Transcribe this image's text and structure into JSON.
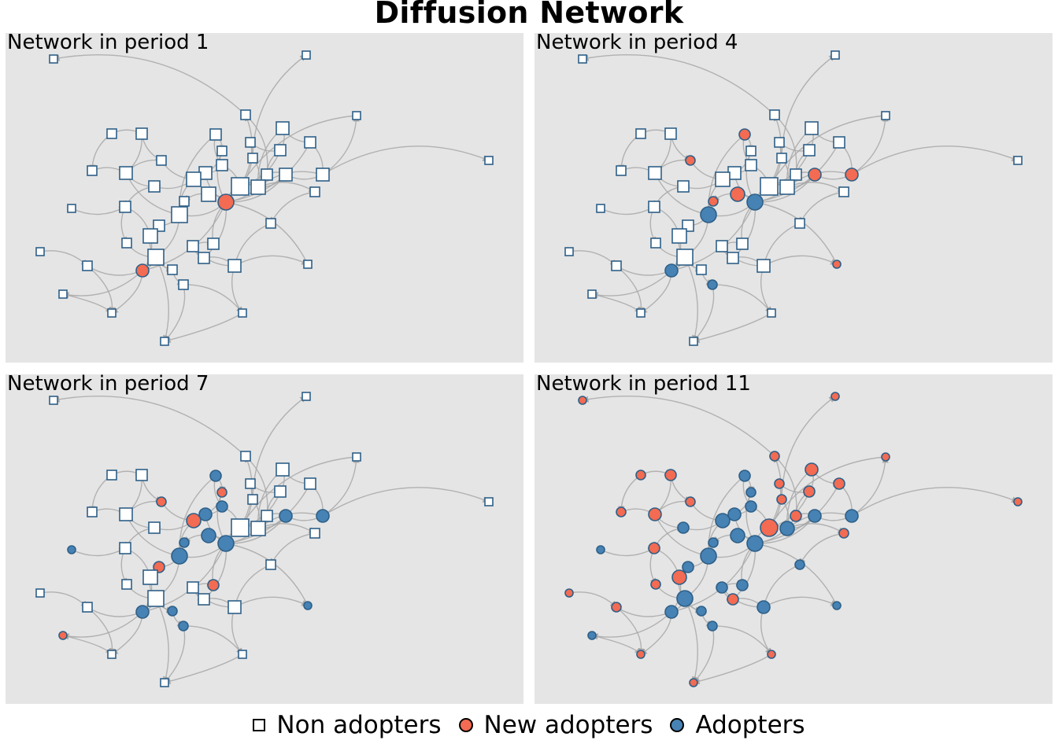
{
  "title": "Diffusion Network",
  "colors": {
    "non_adopter_fill": "#ffffff",
    "new_adopter_fill": "#f26b52",
    "adopter_fill": "#4682b4",
    "node_border": "#2e5f87",
    "edge": "#a8a8a8",
    "panel_bg": "#e5e5e5"
  },
  "panels": [
    {
      "label": "Network in period 1"
    },
    {
      "label": "Network in period 4"
    },
    {
      "label": "Network in period 7"
    },
    {
      "label": "Network in period 11"
    }
  ],
  "legend": [
    {
      "label": "Non adopters",
      "shape": "square",
      "color": "#ffffff"
    },
    {
      "label": "New adopters",
      "shape": "circle",
      "color": "#f26b52"
    },
    {
      "label": "Adopters",
      "shape": "circle",
      "color": "#4682b4"
    }
  ],
  "status_codes": {
    "0": "non adopter",
    "1": "new adopter",
    "2": "adopter"
  },
  "node_states": [
    [
      0,
      0,
      0,
      0,
      0,
      0,
      0,
      0,
      0,
      0,
      0,
      0,
      0,
      0,
      0,
      0,
      0,
      0,
      0,
      0,
      0,
      0,
      0,
      0,
      0,
      0,
      0,
      0,
      1,
      0,
      0,
      0,
      0,
      0,
      0,
      0,
      0,
      0,
      0,
      0,
      0,
      0,
      0,
      1,
      0,
      0,
      0,
      0,
      0,
      0
    ],
    [
      0,
      0,
      0,
      0,
      0,
      0,
      0,
      1,
      0,
      0,
      0,
      0,
      0,
      0,
      1,
      0,
      0,
      0,
      0,
      0,
      0,
      1,
      1,
      0,
      0,
      0,
      0,
      1,
      2,
      1,
      2,
      0,
      0,
      0,
      0,
      0,
      0,
      0,
      0,
      0,
      0,
      0,
      0,
      2,
      0,
      0,
      1,
      2,
      0,
      0
    ],
    [
      0,
      0,
      0,
      0,
      0,
      0,
      0,
      2,
      0,
      0,
      0,
      1,
      0,
      0,
      1,
      0,
      0,
      2,
      2,
      1,
      0,
      2,
      2,
      0,
      0,
      0,
      0,
      2,
      2,
      2,
      2,
      2,
      0,
      0,
      1,
      0,
      0,
      0,
      0,
      1,
      0,
      0,
      0,
      2,
      2,
      0,
      2,
      2,
      1,
      0
    ],
    [
      1,
      1,
      1,
      1,
      1,
      1,
      1,
      2,
      1,
      1,
      1,
      2,
      1,
      1,
      1,
      1,
      1,
      2,
      2,
      2,
      1,
      2,
      2,
      2,
      1,
      2,
      1,
      2,
      2,
      2,
      2,
      2,
      1,
      2,
      2,
      1,
      1,
      1,
      2,
      2,
      2,
      1,
      1,
      2,
      2,
      2,
      2,
      2,
      2,
      1
    ]
  ]
}
